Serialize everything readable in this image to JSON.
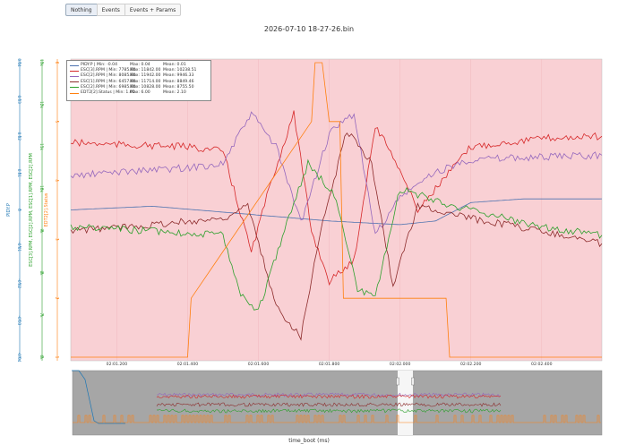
{
  "toolbar": {
    "buttons": [
      {
        "label": "Nothing",
        "active": true
      },
      {
        "label": "Events",
        "active": false
      },
      {
        "label": "Events + Params",
        "active": false
      }
    ]
  },
  "chart_data": {
    "type": "line",
    "title": "2026-07-10 18-27-26.bin",
    "xlabel": "time_boot (ms)",
    "x_tick_labels": [
      "02:01.200",
      "02:01.400",
      "02:01.600",
      "02:01.800",
      "02:02.000",
      "02:02.200",
      "02:02.400"
    ],
    "x_ticks_s": [
      121.2,
      121.4,
      121.6,
      121.8,
      122.0,
      122.2,
      122.4
    ],
    "xlim_s": [
      121.07,
      122.57
    ],
    "background_color": "#f9d0d4",
    "axes": [
      {
        "label": "PIDY.P",
        "color": "#1f77b4",
        "ticks": [
          "0.04",
          "0.03",
          "0.02",
          "0.01",
          "0",
          "-0.01",
          "-0.02",
          "-0.03",
          "-0.04"
        ],
        "range": [
          -0.04,
          0.04
        ]
      },
      {
        "label": "ESC[3].RPM, ESC[2].RPM, ESC[1].RPM, ESC[2].RPM",
        "color": "#2ca02c",
        "ticks": [
          "13k",
          "12k",
          "11k",
          "10k",
          "9k",
          "8k",
          "7k",
          "6k"
        ],
        "range": [
          6000,
          13000
        ]
      },
      {
        "label": "EDT2[2].Status",
        "color": "#ff7f0e",
        "ticks": [
          "6",
          "5",
          "4",
          "3",
          "2",
          "1"
        ],
        "range": [
          1,
          6
        ]
      }
    ],
    "series": [
      {
        "name": "PIDY.P",
        "color": "#4c72b0",
        "axis": 0,
        "min": "-0.04",
        "max": "0.04",
        "mean": "0.01",
        "x": [
          121.07,
          121.3,
          121.55,
          121.8,
          122.0,
          122.1,
          122.2,
          122.35,
          122.57
        ],
        "y": [
          0.0,
          0.001,
          -0.001,
          -0.003,
          -0.004,
          -0.003,
          0.002,
          0.003,
          0.003
        ]
      },
      {
        "name": "ESC[3].RPM",
        "color": "#d62728",
        "axis": 1,
        "min": "7785.00",
        "max": "11842.00",
        "mean": "10238.51",
        "x": [
          121.07,
          121.2,
          121.4,
          121.5,
          121.58,
          121.63,
          121.7,
          121.75,
          121.8,
          121.87,
          121.93,
          121.98,
          122.05,
          122.2,
          122.4,
          122.57
        ],
        "y": [
          11100,
          11050,
          11000,
          10900,
          8500,
          10000,
          11800,
          9000,
          7800,
          8300,
          11500,
          10800,
          9500,
          11000,
          11200,
          11250
        ]
      },
      {
        "name": "ESC[2].RPM",
        "color": "#9467bd",
        "axis": 1,
        "min": "8085.00",
        "max": "11942.00",
        "mean": "9946.33",
        "x": [
          121.07,
          121.2,
          121.4,
          121.5,
          121.58,
          121.65,
          121.72,
          121.8,
          121.87,
          121.93,
          122.0,
          122.1,
          122.2,
          122.57
        ],
        "y": [
          10300,
          10400,
          10500,
          10600,
          11800,
          11000,
          9200,
          11300,
          11800,
          8900,
          9800,
          10400,
          10700,
          10800
        ]
      },
      {
        "name": "ESC[1].RPM",
        "color": "#8c2b2b",
        "axis": 1,
        "min": "6457.00",
        "max": "11714.00",
        "mean": "8849.46",
        "x": [
          121.07,
          121.3,
          121.5,
          121.57,
          121.65,
          121.72,
          121.77,
          121.85,
          121.92,
          121.98,
          122.05,
          122.2,
          122.4,
          122.57
        ],
        "y": [
          9000,
          9150,
          9300,
          9600,
          7200,
          6500,
          8800,
          11400,
          10600,
          7700,
          9600,
          9300,
          9000,
          8700
        ]
      },
      {
        "name": "ESC[2].RPM",
        "color": "#2ca02c",
        "axis": 1,
        "min": "6985.00",
        "max": "10828.00",
        "mean": "8755.50",
        "x": [
          121.07,
          121.3,
          121.5,
          121.55,
          121.6,
          121.68,
          121.74,
          121.82,
          121.88,
          121.93,
          122.0,
          122.15,
          122.4,
          122.57
        ],
        "y": [
          9100,
          9000,
          8900,
          7500,
          7100,
          9200,
          10600,
          9800,
          7600,
          7400,
          10000,
          9600,
          9100,
          8900
        ]
      },
      {
        "name": "EDT2[2].Status",
        "color": "#ff7f0e",
        "axis": 2,
        "min": "1.00",
        "max": "6.00",
        "mean": "2.10",
        "x": [
          121.07,
          121.22,
          121.4,
          121.41,
          121.75,
          121.76,
          121.78,
          121.8,
          121.83,
          121.84,
          121.99,
          122.0,
          122.01,
          122.13,
          122.14,
          122.57
        ],
        "y": [
          1.0,
          1.0,
          1.0,
          2.0,
          5.0,
          6.0,
          6.0,
          5.0,
          5.0,
          2.0,
          2.0,
          2.0,
          2.0,
          2.0,
          1.0,
          1.0
        ]
      }
    ]
  }
}
